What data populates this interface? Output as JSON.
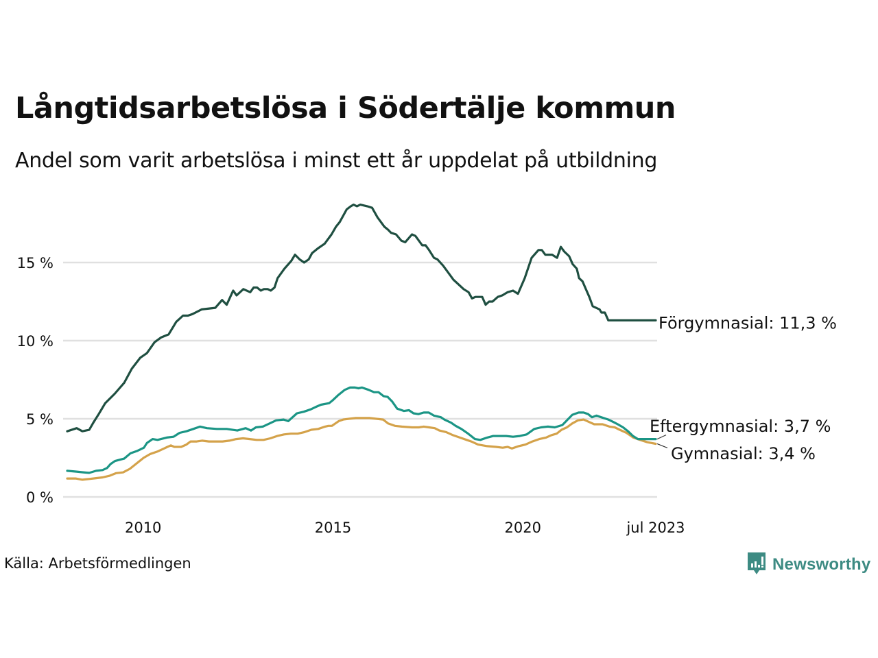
{
  "title": "Långtidsarbetslösa i Södertälje kommun",
  "subtitle": "Andel som varit arbetslösa i minst ett år uppdelat på utbildning",
  "source": "Källa: Arbetsförmedlingen",
  "brand": {
    "name": "Newsworthy",
    "icon": "newsworthy-logo-icon",
    "color": "#3d8b83"
  },
  "chart_data": {
    "type": "line",
    "title": "Långtidsarbetslösa i Södertälje kommun",
    "subtitle": "Andel som varit arbetslösa i minst ett år uppdelat på utbildning",
    "xlabel": "",
    "ylabel": "",
    "xlim": [
      2008.0,
      2023.5
    ],
    "ylim": [
      0,
      19
    ],
    "grid": true,
    "y_ticks": [
      0,
      5,
      10,
      15
    ],
    "y_tick_labels": [
      "0 %",
      "5 %",
      "10 %",
      "15 %"
    ],
    "x_ticks": [
      2010,
      2015,
      2020,
      2023.5
    ],
    "x_tick_labels": [
      "2010",
      "2015",
      "2020",
      "jul 2023"
    ],
    "legend": "end-of-line labels",
    "series": [
      {
        "name": "Förgymnasial",
        "end_label": "Förgymnasial: 11,3 %",
        "color": "#1f4f41",
        "x": [
          2008.0,
          2008.25,
          2008.4,
          2008.58,
          2008.7,
          2008.83,
          2009.0,
          2009.25,
          2009.5,
          2009.7,
          2009.92,
          2010.1,
          2010.3,
          2010.47,
          2010.67,
          2010.87,
          2011.05,
          2011.18,
          2011.3,
          2011.54,
          2011.9,
          2012.08,
          2012.2,
          2012.37,
          2012.46,
          2012.64,
          2012.82,
          2012.91,
          2013.0,
          2013.1,
          2013.18,
          2013.28,
          2013.36,
          2013.46,
          2013.54,
          2013.72,
          2013.9,
          2014.0,
          2014.12,
          2014.24,
          2014.36,
          2014.45,
          2014.6,
          2014.78,
          2014.96,
          2015.08,
          2015.18,
          2015.27,
          2015.36,
          2015.47,
          2015.54,
          2015.63,
          2015.72,
          2015.9,
          2016.03,
          2016.17,
          2016.35,
          2016.45,
          2016.53,
          2016.66,
          2016.8,
          2016.9,
          2017.08,
          2017.17,
          2017.35,
          2017.44,
          2017.53,
          2017.66,
          2017.75,
          2017.9,
          2018.08,
          2018.17,
          2018.26,
          2018.44,
          2018.57,
          2018.66,
          2018.75,
          2018.93,
          2019.02,
          2019.11,
          2019.2,
          2019.34,
          2019.46,
          2019.6,
          2019.74,
          2019.87,
          2020.05,
          2020.23,
          2020.41,
          2020.5,
          2020.59,
          2020.68,
          2020.77,
          2020.9,
          2021.0,
          2021.09,
          2021.22,
          2021.31,
          2021.42,
          2021.48,
          2021.57,
          2021.66,
          2021.75,
          2021.84,
          2022.02,
          2022.07,
          2022.16,
          2022.25,
          2022.34,
          2022.43,
          2022.52,
          2022.7,
          2022.82,
          2022.93,
          2023.05,
          2023.11,
          2023.24,
          2023.36,
          2023.45,
          2023.5
        ],
        "values": [
          4.2,
          4.4,
          4.2,
          4.3,
          4.8,
          5.3,
          6.0,
          6.6,
          7.3,
          8.2,
          8.9,
          9.2,
          9.9,
          10.2,
          10.4,
          11.2,
          11.6,
          11.6,
          11.7,
          12.0,
          12.1,
          12.6,
          12.3,
          13.2,
          12.9,
          13.3,
          13.1,
          13.4,
          13.4,
          13.2,
          13.3,
          13.3,
          13.2,
          13.4,
          14.0,
          14.6,
          15.1,
          15.5,
          15.2,
          15.0,
          15.2,
          15.6,
          15.9,
          16.2,
          16.8,
          17.3,
          17.6,
          18.0,
          18.4,
          18.6,
          18.7,
          18.6,
          18.7,
          18.6,
          18.5,
          17.9,
          17.3,
          17.1,
          16.9,
          16.8,
          16.4,
          16.3,
          16.8,
          16.7,
          16.1,
          16.1,
          15.8,
          15.3,
          15.2,
          14.8,
          14.2,
          13.9,
          13.7,
          13.3,
          13.1,
          12.7,
          12.8,
          12.8,
          12.3,
          12.5,
          12.5,
          12.8,
          12.9,
          13.1,
          13.2,
          13.0,
          14.0,
          15.3,
          15.8,
          15.8,
          15.5,
          15.5,
          15.5,
          15.3,
          16.0,
          15.7,
          15.4,
          14.9,
          14.6,
          14.0,
          13.8,
          13.3,
          12.8,
          12.2,
          12.0,
          11.8,
          11.8,
          11.3,
          11.3,
          11.3,
          11.3,
          11.3,
          11.3,
          11.3,
          11.3,
          11.3,
          11.3,
          11.3,
          11.3,
          11.3
        ],
        "note": "values resampled from traced line"
      },
      {
        "name": "Eftergymnasial",
        "end_label": "Eftergymnasial:  3,7 %",
        "color": "#1b9585",
        "x": [
          2008.0,
          2008.25,
          2008.4,
          2008.58,
          2008.76,
          2008.93,
          2009.05,
          2009.14,
          2009.26,
          2009.5,
          2009.67,
          2009.85,
          2010.02,
          2010.1,
          2010.25,
          2010.38,
          2010.62,
          2010.8,
          2010.96,
          2011.14,
          2011.32,
          2011.5,
          2011.68,
          2011.94,
          2012.2,
          2012.48,
          2012.7,
          2012.84,
          2012.97,
          2013.15,
          2013.33,
          2013.5,
          2013.7,
          2013.82,
          2014.05,
          2014.23,
          2014.41,
          2014.54,
          2014.68,
          2014.9,
          2015.0,
          2015.13,
          2015.31,
          2015.45,
          2015.58,
          2015.67,
          2015.76,
          2015.94,
          2016.08,
          2016.2,
          2016.33,
          2016.44,
          2016.56,
          2016.69,
          2016.87,
          2017.0,
          2017.12,
          2017.25,
          2017.39,
          2017.52,
          2017.66,
          2017.84,
          2017.93,
          2018.11,
          2018.23,
          2018.38,
          2018.56,
          2018.74,
          2018.88,
          2019.06,
          2019.22,
          2019.38,
          2019.56,
          2019.74,
          2019.92,
          2020.1,
          2020.3,
          2020.48,
          2020.66,
          2020.84,
          2021.04,
          2021.16,
          2021.3,
          2021.47,
          2021.6,
          2021.72,
          2021.82,
          2021.94,
          2022.06,
          2022.25,
          2022.38,
          2022.5,
          2022.64,
          2022.77,
          2022.9,
          2023.03,
          2023.13,
          2023.31,
          2023.5
        ],
        "values": [
          1.67,
          1.62,
          1.58,
          1.54,
          1.67,
          1.72,
          1.85,
          2.1,
          2.3,
          2.45,
          2.8,
          2.95,
          3.15,
          3.45,
          3.7,
          3.65,
          3.8,
          3.85,
          4.1,
          4.2,
          4.35,
          4.5,
          4.4,
          4.35,
          4.35,
          4.25,
          4.4,
          4.25,
          4.45,
          4.5,
          4.7,
          4.9,
          4.95,
          4.85,
          5.35,
          5.45,
          5.6,
          5.75,
          5.9,
          6.0,
          6.2,
          6.5,
          6.85,
          7.0,
          7.0,
          6.95,
          7.0,
          6.85,
          6.7,
          6.7,
          6.45,
          6.4,
          6.1,
          5.65,
          5.5,
          5.55,
          5.35,
          5.3,
          5.4,
          5.4,
          5.2,
          5.1,
          4.95,
          4.75,
          4.55,
          4.35,
          4.05,
          3.7,
          3.65,
          3.8,
          3.9,
          3.9,
          3.9,
          3.85,
          3.9,
          4.0,
          4.35,
          4.45,
          4.5,
          4.45,
          4.6,
          4.9,
          5.25,
          5.4,
          5.4,
          5.3,
          5.1,
          5.2,
          5.1,
          4.95,
          4.8,
          4.65,
          4.45,
          4.2,
          3.9,
          3.7,
          3.7,
          3.7,
          3.7
        ]
      },
      {
        "name": "Gymnasial",
        "end_label": "Gymnasial:  3,4 %",
        "color": "#d4a24a",
        "x": [
          2008.0,
          2008.22,
          2008.4,
          2008.58,
          2008.76,
          2008.93,
          2009.11,
          2009.29,
          2009.47,
          2009.65,
          2009.83,
          2010.01,
          2010.19,
          2010.37,
          2010.55,
          2010.64,
          2010.73,
          2010.82,
          2011.0,
          2011.14,
          2011.25,
          2011.41,
          2011.55,
          2011.73,
          2011.91,
          2012.09,
          2012.27,
          2012.45,
          2012.63,
          2012.81,
          2012.99,
          2013.17,
          2013.35,
          2013.53,
          2013.71,
          2013.89,
          2014.07,
          2014.25,
          2014.43,
          2014.61,
          2014.79,
          2014.88,
          2014.97,
          2015.15,
          2015.27,
          2015.42,
          2015.6,
          2015.78,
          2015.96,
          2016.14,
          2016.32,
          2016.45,
          2016.63,
          2016.81,
          2017.08,
          2017.26,
          2017.39,
          2017.53,
          2017.68,
          2017.8,
          2017.98,
          2018.16,
          2018.34,
          2018.52,
          2018.64,
          2018.82,
          2019.06,
          2019.29,
          2019.47,
          2019.6,
          2019.71,
          2019.89,
          2020.07,
          2020.25,
          2020.43,
          2020.61,
          2020.75,
          2020.89,
          2021.02,
          2021.16,
          2021.3,
          2021.45,
          2021.6,
          2021.74,
          2021.88,
          2022.1,
          2022.28,
          2022.42,
          2022.55,
          2022.73,
          2022.91,
          2023.09,
          2023.28,
          2023.5
        ],
        "values": [
          1.18,
          1.18,
          1.1,
          1.15,
          1.2,
          1.25,
          1.35,
          1.52,
          1.57,
          1.8,
          2.15,
          2.5,
          2.75,
          2.9,
          3.1,
          3.2,
          3.3,
          3.2,
          3.2,
          3.35,
          3.55,
          3.55,
          3.6,
          3.55,
          3.55,
          3.55,
          3.6,
          3.7,
          3.75,
          3.7,
          3.65,
          3.65,
          3.75,
          3.9,
          4.0,
          4.05,
          4.05,
          4.15,
          4.3,
          4.35,
          4.5,
          4.55,
          4.55,
          4.85,
          4.95,
          5.0,
          5.05,
          5.05,
          5.05,
          5.0,
          4.95,
          4.7,
          4.55,
          4.5,
          4.45,
          4.45,
          4.5,
          4.45,
          4.4,
          4.25,
          4.15,
          3.95,
          3.8,
          3.65,
          3.55,
          3.35,
          3.25,
          3.2,
          3.15,
          3.2,
          3.1,
          3.25,
          3.35,
          3.55,
          3.7,
          3.8,
          3.95,
          4.05,
          4.3,
          4.45,
          4.7,
          4.9,
          4.95,
          4.8,
          4.65,
          4.65,
          4.5,
          4.45,
          4.3,
          4.1,
          3.8,
          3.65,
          3.5,
          3.4
        ]
      }
    ]
  }
}
